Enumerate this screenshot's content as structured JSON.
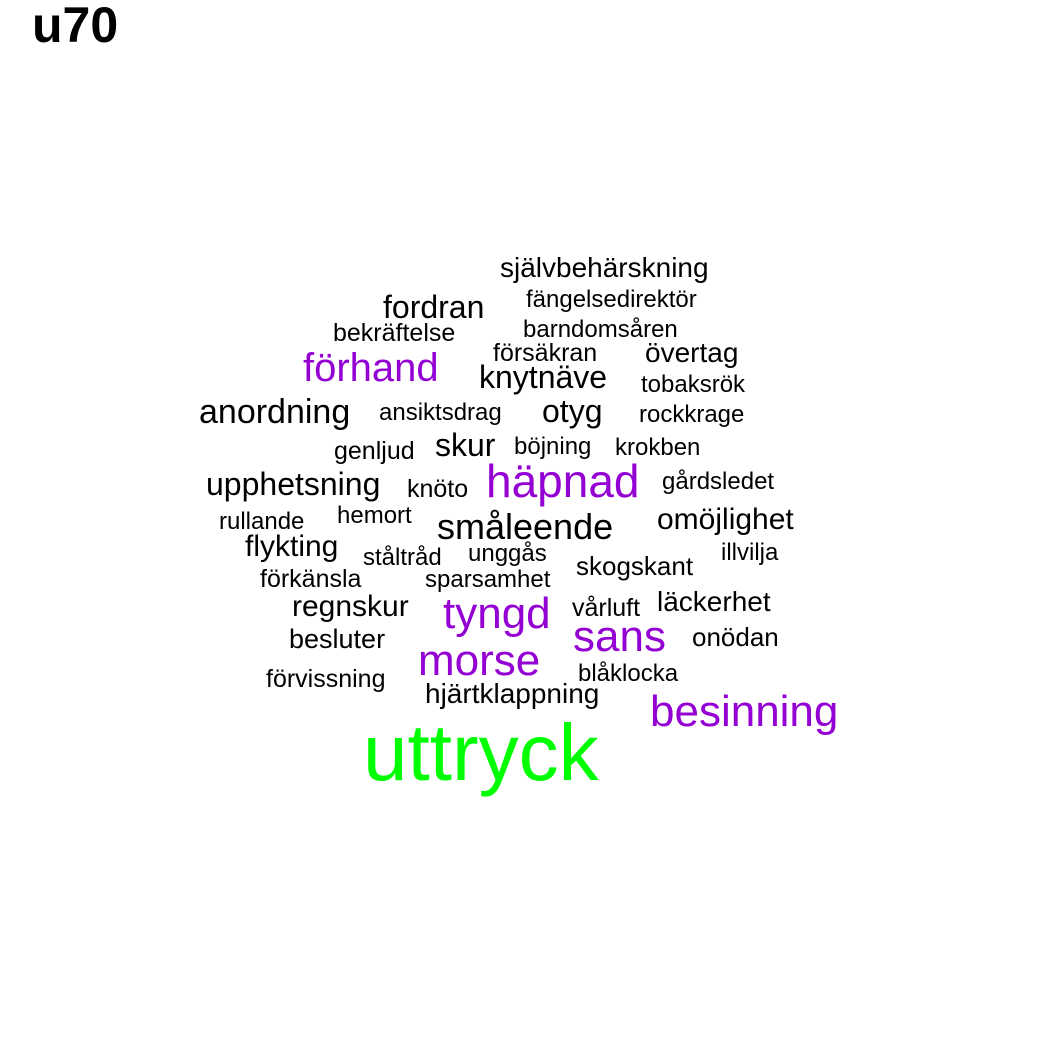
{
  "title": "u70",
  "colors": {
    "primary": "#00ff00",
    "highlight": "#9400d3",
    "normal": "#000000"
  },
  "words": [
    {
      "text": "självbehärskning",
      "weight": "normal"
    },
    {
      "text": "fordran",
      "weight": "normal"
    },
    {
      "text": "fängelsedirektör",
      "weight": "normal"
    },
    {
      "text": "bekräftelse",
      "weight": "normal"
    },
    {
      "text": "barndomsåren",
      "weight": "normal"
    },
    {
      "text": "försäkran",
      "weight": "normal"
    },
    {
      "text": "övertag",
      "weight": "normal"
    },
    {
      "text": "förhand",
      "weight": "highlight"
    },
    {
      "text": "knytnäve",
      "weight": "normal"
    },
    {
      "text": "tobaksrök",
      "weight": "normal"
    },
    {
      "text": "anordning",
      "weight": "normal"
    },
    {
      "text": "ansiktsdrag",
      "weight": "normal"
    },
    {
      "text": "otyg",
      "weight": "normal"
    },
    {
      "text": "rockkrage",
      "weight": "normal"
    },
    {
      "text": "genljud",
      "weight": "normal"
    },
    {
      "text": "skur",
      "weight": "normal"
    },
    {
      "text": "böjning",
      "weight": "normal"
    },
    {
      "text": "krokben",
      "weight": "normal"
    },
    {
      "text": "upphetsning",
      "weight": "normal"
    },
    {
      "text": "knöto",
      "weight": "normal"
    },
    {
      "text": "häpnad",
      "weight": "highlight"
    },
    {
      "text": "gårdsledet",
      "weight": "normal"
    },
    {
      "text": "rullande",
      "weight": "normal"
    },
    {
      "text": "hemort",
      "weight": "normal"
    },
    {
      "text": "småleende",
      "weight": "normal"
    },
    {
      "text": "omöjlighet",
      "weight": "normal"
    },
    {
      "text": "flykting",
      "weight": "normal"
    },
    {
      "text": "ståltråd",
      "weight": "normal"
    },
    {
      "text": "unggås",
      "weight": "normal"
    },
    {
      "text": "illvilja",
      "weight": "normal"
    },
    {
      "text": "förkänsla",
      "weight": "normal"
    },
    {
      "text": "sparsamhet",
      "weight": "normal"
    },
    {
      "text": "skogskant",
      "weight": "normal"
    },
    {
      "text": "regnskur",
      "weight": "normal"
    },
    {
      "text": "tyngd",
      "weight": "highlight"
    },
    {
      "text": "vårluft",
      "weight": "normal"
    },
    {
      "text": "läckerhet",
      "weight": "normal"
    },
    {
      "text": "besluter",
      "weight": "normal"
    },
    {
      "text": "sans",
      "weight": "highlight"
    },
    {
      "text": "onödan",
      "weight": "normal"
    },
    {
      "text": "morse",
      "weight": "highlight"
    },
    {
      "text": "förvissning",
      "weight": "normal"
    },
    {
      "text": "blåklocka",
      "weight": "normal"
    },
    {
      "text": "hjärtklappning",
      "weight": "normal"
    },
    {
      "text": "besinning",
      "weight": "highlight"
    },
    {
      "text": "uttryck",
      "weight": "primary"
    }
  ]
}
